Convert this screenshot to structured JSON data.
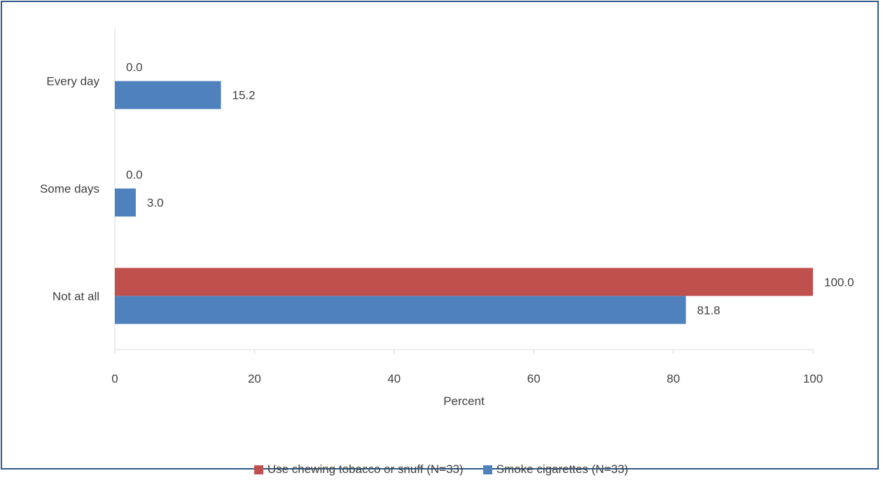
{
  "chart_data": {
    "type": "bar",
    "orientation": "horizontal",
    "categories": [
      "Every day",
      "Some days",
      "Not at all"
    ],
    "series": [
      {
        "name": "Use chewing tobacco or snuff (N=33)",
        "color": "#C0504D",
        "values": [
          0.0,
          0.0,
          100.0
        ],
        "labels": [
          "0.0",
          "0.0",
          "100.0"
        ]
      },
      {
        "name": "Smoke cigarettes (N=33)",
        "color": "#4F81BD",
        "values": [
          15.2,
          3.0,
          81.8
        ],
        "labels": [
          "15.2",
          "3.0",
          "81.8"
        ]
      }
    ],
    "xlabel": "Percent",
    "xlim": [
      0,
      100
    ],
    "xticks": [
      "0",
      "20",
      "40",
      "60",
      "80",
      "100"
    ],
    "grid": false,
    "legend_position": "bottom"
  }
}
